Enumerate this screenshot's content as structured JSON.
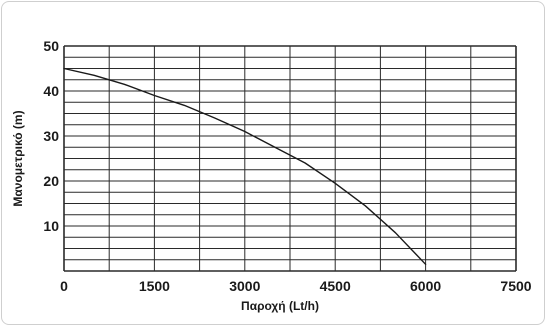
{
  "chart_data": {
    "type": "line",
    "title": "",
    "xlabel": "Παροχή (Lt/h)",
    "ylabel": "Μανομετρικό (m)",
    "xlim": [
      0,
      7500
    ],
    "ylim": [
      0,
      50
    ],
    "x_ticks": [
      0,
      1500,
      3000,
      4500,
      6000,
      7500
    ],
    "y_ticks": [
      10,
      20,
      30,
      40,
      50
    ],
    "grid": true,
    "minor_grid_y_step": 2.5,
    "major_grid_x_step": 750,
    "line_color": "#1a1a1a",
    "grid_color": "#2a2a2a",
    "series": [
      {
        "x": [
          0,
          500,
          1000,
          1500,
          2000,
          2500,
          3000,
          3500,
          4000,
          4500,
          5000,
          5500,
          6000
        ],
        "y": [
          45,
          43.5,
          41.5,
          39,
          36.8,
          34,
          31,
          27.5,
          24,
          19.5,
          14.5,
          8.5,
          1.5
        ]
      }
    ]
  }
}
